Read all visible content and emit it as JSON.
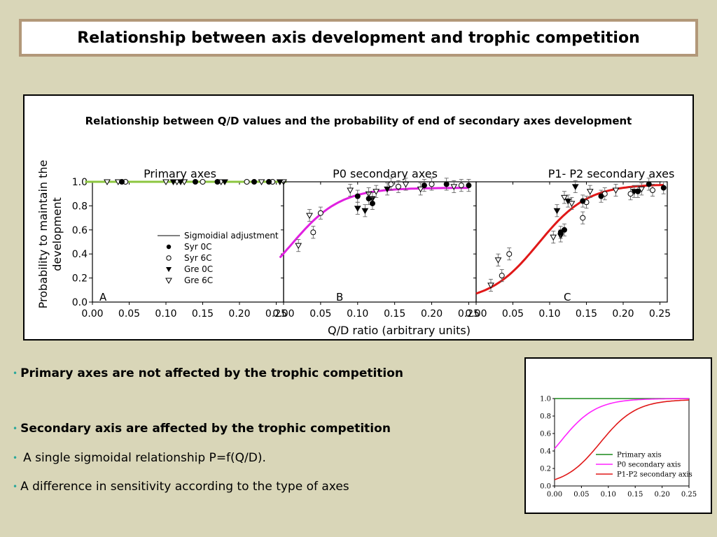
{
  "slide_title": "Relationship between axis development and trophic competition",
  "bullets": [
    {
      "text": "Primary axes are not affected by the trophic competition",
      "bold": true
    },
    {
      "text": "Secondary axis are affected by the trophic competition",
      "bold": true
    },
    {
      "text": "A single sigmoidal relationship P=f(Q/D).",
      "bold": false
    },
    {
      "text": "A difference in sensitivity according to the type of axes",
      "bold": false
    }
  ],
  "colors": {
    "background": "#d9d6b8",
    "title_border": "#b29879",
    "bullet_dot": "#2aa89a",
    "primary_fit": "#8cc63f",
    "p0_fit": "#e020e0",
    "p1p2_fit": "#e01818",
    "inset_primary": "#1a8a1a",
    "inset_p0": "#ff22ff",
    "inset_p1p2": "#e01818"
  },
  "chart_data": [
    {
      "type": "scatter",
      "title": "Relationship between Q/D values and the probability of end of secondary axes development",
      "ylabel": "Probability to maintain the development",
      "xlabel": "Q/D ratio (arbitrary units)",
      "ylim": [
        0,
        1
      ],
      "yticks": [
        "0.0",
        "0.2",
        "0.4",
        "0.6",
        "0.8",
        "1.0"
      ],
      "xlim": [
        0,
        0.25
      ],
      "xticks": [
        "0.00",
        "0.05",
        "0.10",
        "0.15",
        "0.20",
        "0.25"
      ],
      "legend": {
        "placement": "panel-A lower-right",
        "entries": [
          "Sigmoidial adjustment",
          "Syr 0C",
          "Syr 6C",
          "Gre 0C",
          "Gre 6C"
        ]
      },
      "panels": [
        {
          "letter": "A",
          "label": "Primary axes",
          "fit": {
            "type": "constant",
            "value": 1.0
          },
          "syr0c": [
            [
              0.04,
              1.0
            ],
            [
              0.14,
              1.0
            ],
            [
              0.17,
              1.0
            ],
            [
              0.22,
              1.0
            ],
            [
              0.24,
              1.0
            ]
          ],
          "syr6c": [
            [
              0.045,
              1.0
            ],
            [
              0.15,
              1.0
            ],
            [
              0.21,
              1.0
            ],
            [
              0.245,
              1.0
            ]
          ],
          "gre0c": [
            [
              0.11,
              1.0
            ],
            [
              0.12,
              1.0
            ],
            [
              0.18,
              1.0
            ],
            [
              0.255,
              1.0
            ]
          ],
          "gre6c": [
            [
              0.02,
              1.0
            ],
            [
              0.035,
              1.0
            ],
            [
              0.1,
              1.0
            ],
            [
              0.115,
              1.0
            ],
            [
              0.125,
              1.0
            ],
            [
              0.175,
              1.0
            ],
            [
              0.23,
              1.0
            ],
            [
              0.26,
              1.0
            ]
          ]
        },
        {
          "letter": "B",
          "label": "P0 secondary axes",
          "fit": {
            "type": "sigmoid",
            "k": 30,
            "x0": 0.01,
            "ymax": 0.95,
            "x_range": [
              -0.005,
              0.25
            ]
          },
          "syr0c": [
            [
              0.1,
              0.88
            ],
            [
              0.115,
              0.86
            ],
            [
              0.12,
              0.82
            ],
            [
              0.19,
              0.97
            ],
            [
              0.22,
              0.98
            ],
            [
              0.25,
              0.97
            ]
          ],
          "syr6c": [
            [
              0.04,
              0.58
            ],
            [
              0.05,
              0.74
            ],
            [
              0.145,
              0.98
            ],
            [
              0.155,
              0.96
            ],
            [
              0.2,
              0.98
            ],
            [
              0.24,
              0.97
            ]
          ],
          "gre0c": [
            [
              0.1,
              0.78
            ],
            [
              0.11,
              0.76
            ],
            [
              0.12,
              0.86
            ],
            [
              0.14,
              0.94
            ]
          ],
          "gre6c": [
            [
              0.02,
              0.47
            ],
            [
              0.035,
              0.72
            ],
            [
              0.09,
              0.93
            ],
            [
              0.115,
              0.9
            ],
            [
              0.125,
              0.92
            ],
            [
              0.165,
              0.98
            ],
            [
              0.185,
              0.94
            ],
            [
              0.23,
              0.96
            ]
          ]
        },
        {
          "letter": "C",
          "label": "P1- P2 secondary axes",
          "fit": {
            "type": "sigmoid",
            "k": 30,
            "x0": 0.085,
            "ymax": 0.98,
            "x_range": [
              0.0,
              0.255
            ]
          },
          "syr0c": [
            [
              0.115,
              0.58
            ],
            [
              0.12,
              0.6
            ],
            [
              0.145,
              0.84
            ],
            [
              0.17,
              0.88
            ],
            [
              0.22,
              0.92
            ],
            [
              0.235,
              0.98
            ],
            [
              0.255,
              0.95
            ]
          ],
          "syr6c": [
            [
              0.035,
              0.22
            ],
            [
              0.045,
              0.4
            ],
            [
              0.145,
              0.7
            ],
            [
              0.15,
              0.83
            ],
            [
              0.175,
              0.9
            ],
            [
              0.21,
              0.9
            ],
            [
              0.24,
              0.93
            ]
          ],
          "gre0c": [
            [
              0.11,
              0.76
            ],
            [
              0.115,
              0.55
            ],
            [
              0.125,
              0.84
            ],
            [
              0.135,
              0.96
            ],
            [
              0.215,
              0.92
            ]
          ],
          "gre6c": [
            [
              0.02,
              0.14
            ],
            [
              0.03,
              0.35
            ],
            [
              0.105,
              0.54
            ],
            [
              0.12,
              0.87
            ],
            [
              0.13,
              0.82
            ],
            [
              0.155,
              0.92
            ],
            [
              0.19,
              0.93
            ],
            [
              0.225,
              0.94
            ]
          ]
        }
      ]
    },
    {
      "type": "line",
      "title": "",
      "xlabel": "",
      "ylabel": "",
      "xlim": [
        0,
        0.25
      ],
      "ylim": [
        0,
        1
      ],
      "xticks": [
        "0.00",
        "0.05",
        "0.10",
        "0.15",
        "0.20",
        "0.25"
      ],
      "yticks": [
        "0.0",
        "0.2",
        "0.4",
        "0.6",
        "0.8",
        "1.0"
      ],
      "legend": {
        "placement": "bottom-right"
      },
      "series": [
        {
          "name": "Primary axis",
          "fit": {
            "type": "constant",
            "value": 1.0
          }
        },
        {
          "name": "P0 secondary axis",
          "fit": {
            "type": "sigmoid",
            "k": 30,
            "x0": 0.01,
            "ymax": 1.0
          }
        },
        {
          "name": "P1-P2 secondary axis",
          "fit": {
            "type": "sigmoid",
            "k": 30,
            "x0": 0.085,
            "ymax": 0.99
          }
        }
      ]
    }
  ]
}
